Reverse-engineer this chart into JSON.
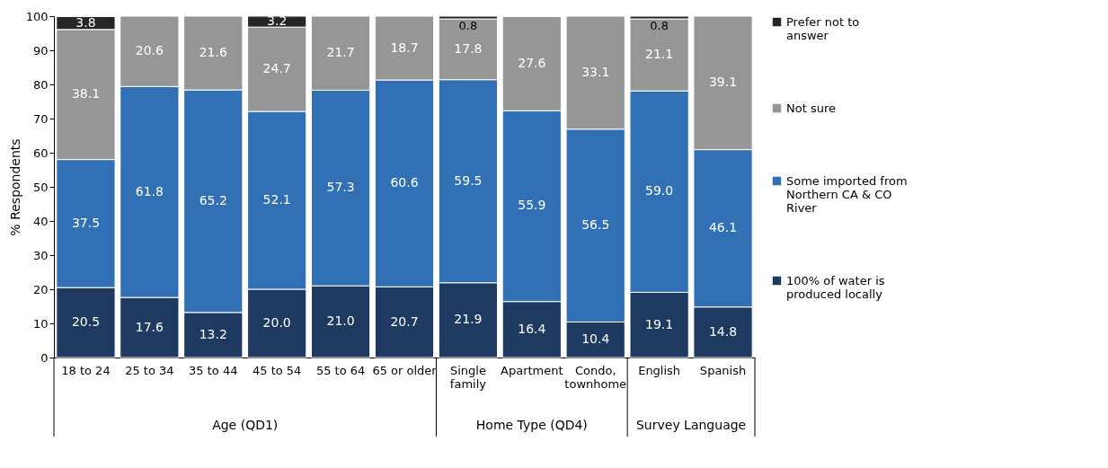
{
  "chart_data": {
    "type": "bar",
    "stacked": true,
    "ylabel": "% Respondents",
    "categories": [
      "18 to 24",
      "25 to 34",
      "35 to 44",
      "45 to 54",
      "55 to 64",
      "65 or older",
      "Single family",
      "Apartment",
      "Condo, townhome",
      "English",
      "Spanish"
    ],
    "series": [
      {
        "name": "100% of water is produced locally",
        "color": "#1f3a60",
        "values": [
          20.5,
          17.6,
          13.2,
          20.0,
          21.0,
          20.7,
          21.9,
          16.4,
          10.4,
          19.1,
          14.8
        ],
        "value_labels": [
          "20.5",
          "17.6",
          "13.2",
          "20.0",
          "21.0",
          "20.7",
          "21.9",
          "16.4",
          "10.4",
          "19.1",
          "14.8"
        ]
      },
      {
        "name": "Some imported from Northern CA & CO River",
        "color": "#3170b5",
        "values": [
          37.5,
          61.8,
          65.2,
          52.1,
          57.3,
          60.6,
          59.5,
          55.9,
          56.5,
          59.0,
          46.1
        ],
        "value_labels": [
          "37.5",
          "61.8",
          "65.2",
          "52.1",
          "57.3",
          "60.6",
          "59.5",
          "55.9",
          "56.5",
          "59.0",
          "46.1"
        ]
      },
      {
        "name": "Not sure",
        "color": "#969696",
        "values": [
          38.1,
          20.6,
          21.6,
          24.7,
          21.7,
          18.7,
          17.8,
          27.6,
          33.1,
          21.1,
          39.1
        ],
        "value_labels": [
          "38.1",
          "20.6",
          "21.6",
          "24.7",
          "21.7",
          "18.7",
          "17.8",
          "27.6",
          "33.1",
          "21.1",
          "39.1"
        ]
      },
      {
        "name": "Prefer not to answer",
        "color": "#262626",
        "values": [
          3.8,
          null,
          null,
          3.2,
          null,
          null,
          0.8,
          null,
          null,
          0.8,
          null
        ],
        "value_labels": [
          "3.8",
          null,
          null,
          "3.2",
          null,
          null,
          "0.8",
          null,
          null,
          "0.8",
          null
        ]
      }
    ],
    "ylim": [
      0,
      100
    ],
    "yticks": [
      0,
      10,
      20,
      30,
      40,
      50,
      60,
      70,
      80,
      90,
      100
    ],
    "grid": false,
    "legend": "right",
    "annotations": [
      "Age (QD1)",
      "Home Type (QD4)",
      "Survey Language"
    ]
  }
}
